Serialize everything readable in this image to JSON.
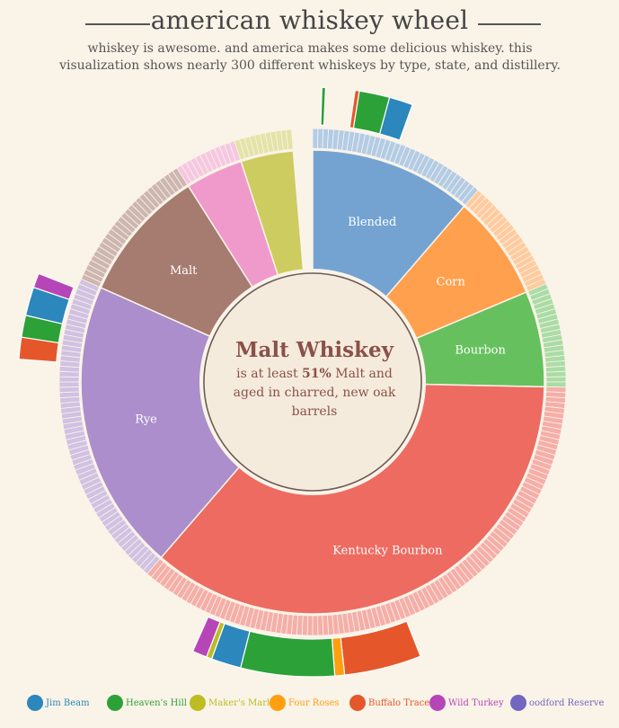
{
  "header": {
    "title": "american whiskey wheel",
    "subtitle": "whiskey is awesome. and america makes some delicious whiskey. this visualization shows nearly 300 different whiskeys by type, state, and distillery."
  },
  "center": {
    "title": "Malt Whiskey",
    "desc_pre": "is at least ",
    "desc_bold": "51%",
    "desc_post": " Malt  and aged in charred, new oak barrels"
  },
  "chart_data": {
    "type": "sunburst",
    "total_count": 300,
    "categories": [
      {
        "name": "Blended",
        "value": 34,
        "color": "#74a3d2",
        "label": "Blended"
      },
      {
        "name": "Corn",
        "value": 22,
        "color": "#ffa04e",
        "label": "Corn"
      },
      {
        "name": "Bourbon",
        "value": 20,
        "color": "#67c05e",
        "label": "Bourbon"
      },
      {
        "name": "Kentucky Bourbon",
        "value": 108,
        "color": "#ed6b61",
        "label": "Kentucky Bourbon"
      },
      {
        "name": "Rye",
        "value": 61,
        "color": "#ab8ecb",
        "label": "Rye"
      },
      {
        "name": "Malt",
        "value": 28,
        "color": "#a67b70",
        "label": "Malt"
      },
      {
        "name": "",
        "value": 12,
        "color": "#ef9acb",
        "label": ""
      },
      {
        "name": "",
        "value": 11,
        "color": "#cdcc60",
        "label": ""
      }
    ],
    "distilleries": [
      {
        "name": "Jim Beam",
        "color": "#2b87bc"
      },
      {
        "name": "Heaven's Hill",
        "color": "#2ca137"
      },
      {
        "name": "Maker's Mark",
        "color": "#bcbd22"
      },
      {
        "name": "Four Roses",
        "color": "#ff9f10"
      },
      {
        "name": "Buffalo Trace",
        "color": "#e5572a"
      },
      {
        "name": "Wild Turkey",
        "color": "#b646b8"
      },
      {
        "name": "Woodford Reserve",
        "color": "#7266c0"
      }
    ],
    "outer_arcs": [
      {
        "distillery": "Jim Beam",
        "start_count": 12.6,
        "count": 3.9
      },
      {
        "distillery": "Heaven's Hill",
        "start_count": 7.6,
        "count": 5.0
      },
      {
        "distillery": "Buffalo Trace",
        "start_count": 6.9,
        "count": 0.7
      },
      {
        "distillery": "Heaven's Hill",
        "start_count": 1.5,
        "count": 0.6
      },
      {
        "distillery": "Buffalo Trace",
        "start_count": 132.1,
        "count": 12.7
      },
      {
        "distillery": "Four Roses",
        "start_count": 144.8,
        "count": 1.6
      },
      {
        "distillery": "Heaven's Hill",
        "start_count": 146.4,
        "count": 15.4
      },
      {
        "distillery": "Jim Beam",
        "start_count": 161.8,
        "count": 4.9
      },
      {
        "distillery": "Maker's Mark",
        "start_count": 166.7,
        "count": 0.9
      },
      {
        "distillery": "Wild Turkey",
        "start_count": 167.6,
        "count": 2.4
      },
      {
        "distillery": "Buffalo Trace",
        "start_count": 228.7,
        "count": 3.6
      },
      {
        "distillery": "Heaven's Hill",
        "start_count": 232.3,
        "count": 3.6
      },
      {
        "distillery": "Jim Beam",
        "start_count": 235.9,
        "count": 4.7
      },
      {
        "distillery": "Wild Turkey",
        "start_count": 240.6,
        "count": 2.4
      }
    ]
  },
  "legend": [
    {
      "label": "Jim Beam",
      "color": "#2b87bc"
    },
    {
      "label": "Heaven's Hill",
      "color": "#2ca137"
    },
    {
      "label": "Maker's Mark",
      "color": "#bcbd22"
    },
    {
      "label": "Four Roses",
      "color": "#ff9f10"
    },
    {
      "label": "Buffalo Trace",
      "color": "#e5572a"
    },
    {
      "label": "Wild Turkey",
      "color": "#b646b8"
    },
    {
      "label": "oodford Reserve",
      "color": "#7266c0"
    }
  ]
}
